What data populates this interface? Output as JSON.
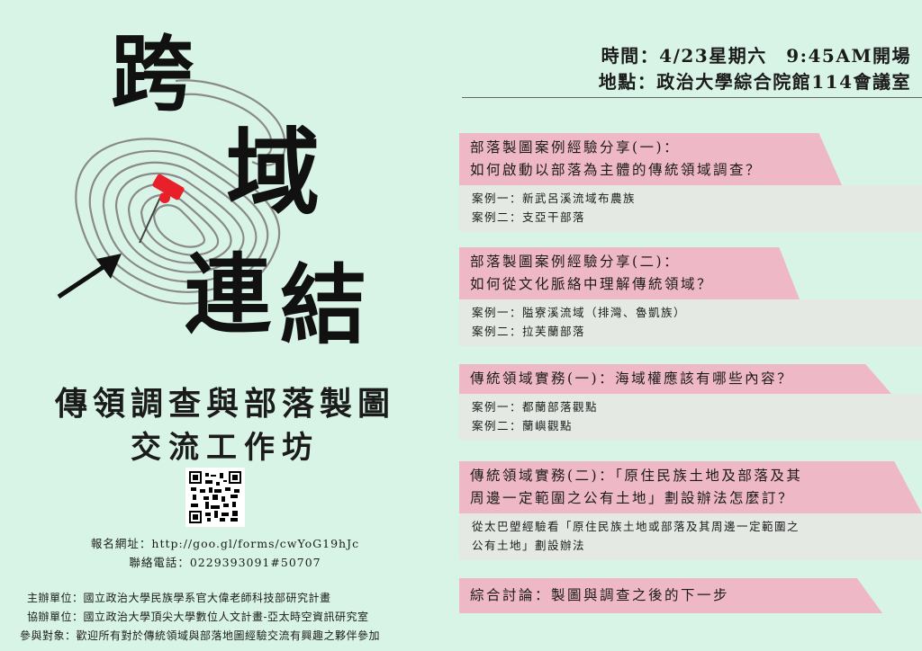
{
  "poster": {
    "big_title_chars": [
      "跨",
      "域",
      "連",
      "結"
    ],
    "title_line1": "傳領調查與部落製圖",
    "title_line2": "交流工作坊",
    "registration": "報名網址：http://goo.gl/forms/cwYoG19hJc",
    "phone": "聯絡電話：0229393091#50707",
    "organizer": "主辦單位：國立政治大學民族學系官大偉老師科技部研究計畫",
    "co_organizer": "協辦單位：國立政治大學頂尖大學數位人文計畫-亞太時空資訊研究室",
    "audience": "參與對象：歡迎所有對於傳統領域與部落地圖經驗交流有興趣之夥伴參加"
  },
  "event": {
    "time": "時間：4/23星期六　9:45AM開場",
    "place": "地點：政治大學綜合院館114會議室"
  },
  "sessions": [
    {
      "title_lines": [
        "部落製圖案例經驗分享(一)：",
        "如何啟動以部落為主體的傳統領域調查？"
      ],
      "cases": [
        "案例一：新武呂溪流域布農族",
        "案例二：支亞干部落"
      ]
    },
    {
      "title_lines": [
        "部落製圖案例經驗分享(二)：",
        "如何從文化脈絡中理解傳統領域？"
      ],
      "cases": [
        "案例一：隘寮溪流域（排灣、魯凱族）",
        "案例二：拉芙蘭部落"
      ]
    },
    {
      "title_lines": [
        "傳統領域實務(一)：海域權應該有哪些內容？"
      ],
      "cases": [
        "案例一：都蘭部落觀點",
        "案例二：蘭嶼觀點"
      ]
    },
    {
      "title_lines": [
        "傳統領域實務(二)：「原住民族土地及部落及其",
        "周邊一定範圍之公有土地」劃設辦法怎麼訂？"
      ],
      "cases": [
        "從太巴塱經驗看「原住民族土地或部落及其周邊一定範圍之",
        "公有土地」劃設辦法"
      ]
    },
    {
      "title_lines": [
        "綜合討論：製圖與調查之後的下一步"
      ],
      "cases": []
    }
  ],
  "colors": {
    "background": "#d8f4e6",
    "session_header": "#efb8c6",
    "session_body": "#e4e9e4",
    "pin": "#e8202a"
  }
}
